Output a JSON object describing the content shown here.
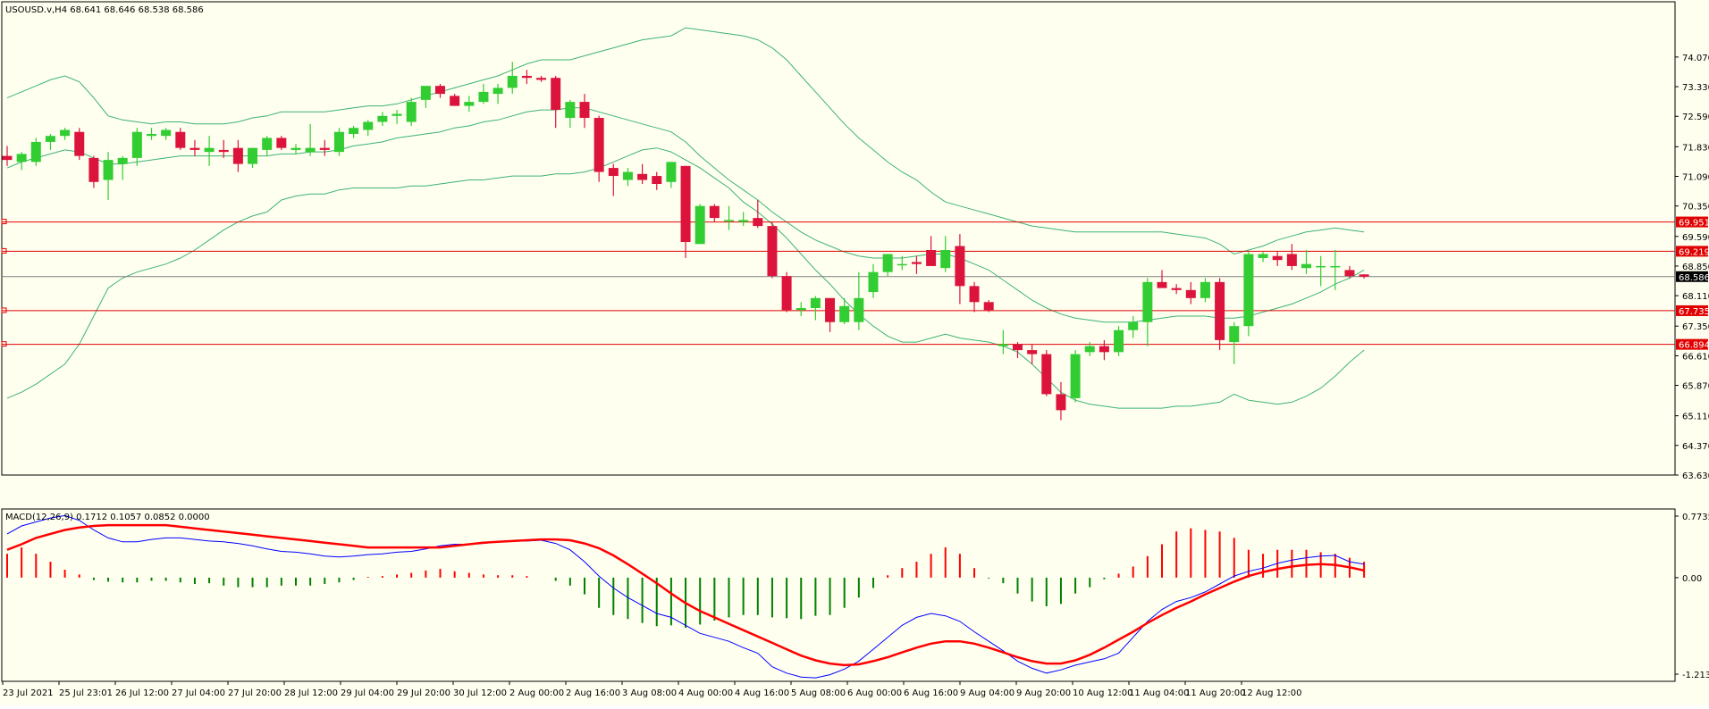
{
  "colors": {
    "background": "#FFFFF0",
    "frame": "#000000",
    "bull_candle": "#32CD32",
    "bear_candle": "#DC143C",
    "bollinger": "#3CB371",
    "hline": "#E00000",
    "bid_line": "#808080",
    "macd_main": "#0000FF",
    "macd_signal": "#FF0000",
    "hist_pos": "#FF0000",
    "hist_neg": "#008000",
    "label_red_bg": "#E00000",
    "label_price_bg": "#000000",
    "label_text": "#FFFFFF",
    "axis_text": "#000000"
  },
  "chart_data": {
    "price_panel": {
      "type": "candlestick",
      "title": "USOUSD.v,H4  68.641 68.646 68.538 68.586",
      "ylim": [
        63.63,
        75.45
      ],
      "y_ticks": [
        "74.070",
        "73.330",
        "72.590",
        "71.830",
        "71.090",
        "70.350",
        "69.590",
        "68.850",
        "68.110",
        "67.350",
        "66.610",
        "65.870",
        "65.110",
        "64.370",
        "63.630"
      ],
      "x_ticks": [
        "23 Jul 2021",
        "25 Jul 23:01",
        "26 Jul 12:00",
        "27 Jul 04:00",
        "27 Jul 20:00",
        "28 Jul 12:00",
        "29 Jul 04:00",
        "29 Jul 20:00",
        "30 Jul 12:00",
        "2 Aug 00:00",
        "2 Aug 16:00",
        "3 Aug 08:00",
        "4 Aug 00:00",
        "4 Aug 16:00",
        "5 Aug 08:00",
        "6 Aug 00:00",
        "6 Aug 16:00",
        "9 Aug 04:00",
        "9 Aug 20:00",
        "10 Aug 12:00",
        "11 Aug 04:00",
        "11 Aug 20:00",
        "12 Aug 12:00"
      ],
      "candles": [
        [
          71.6,
          71.85,
          71.35,
          71.5
        ],
        [
          71.45,
          71.7,
          71.25,
          71.65
        ],
        [
          71.45,
          72.05,
          71.35,
          71.95
        ],
        [
          71.95,
          72.15,
          71.75,
          72.1
        ],
        [
          72.1,
          72.3,
          72.0,
          72.25
        ],
        [
          72.2,
          72.3,
          71.5,
          71.6
        ],
        [
          71.55,
          71.6,
          70.8,
          70.95
        ],
        [
          71.0,
          71.7,
          70.5,
          71.5
        ],
        [
          71.4,
          71.6,
          71.0,
          71.55
        ],
        [
          71.55,
          72.3,
          71.35,
          72.2
        ],
        [
          72.1,
          72.3,
          72.0,
          72.15
        ],
        [
          72.1,
          72.3,
          72.0,
          72.25
        ],
        [
          72.2,
          72.3,
          71.75,
          71.8
        ],
        [
          71.8,
          72.0,
          71.6,
          71.75
        ],
        [
          71.7,
          72.1,
          71.35,
          71.8
        ],
        [
          71.75,
          72.0,
          71.55,
          71.7
        ],
        [
          71.8,
          72.0,
          71.2,
          71.4
        ],
        [
          71.4,
          71.8,
          71.3,
          71.8
        ],
        [
          71.75,
          72.1,
          71.6,
          72.05
        ],
        [
          72.05,
          72.1,
          71.75,
          71.8
        ],
        [
          71.75,
          71.9,
          71.65,
          71.8
        ],
        [
          71.7,
          72.4,
          71.6,
          71.8
        ],
        [
          71.8,
          72.0,
          71.6,
          71.75
        ],
        [
          71.7,
          72.3,
          71.6,
          72.2
        ],
        [
          72.15,
          72.35,
          72.05,
          72.3
        ],
        [
          72.25,
          72.5,
          72.1,
          72.45
        ],
        [
          72.45,
          72.7,
          72.35,
          72.6
        ],
        [
          72.6,
          72.75,
          72.4,
          72.65
        ],
        [
          72.45,
          73.05,
          72.35,
          72.95
        ],
        [
          73.0,
          73.3,
          72.8,
          73.35
        ],
        [
          73.35,
          73.4,
          73.05,
          73.15
        ],
        [
          73.1,
          73.15,
          72.85,
          72.85
        ],
        [
          72.85,
          73.1,
          72.7,
          72.95
        ],
        [
          72.95,
          73.4,
          72.9,
          73.2
        ],
        [
          73.15,
          73.4,
          72.9,
          73.3
        ],
        [
          73.3,
          73.95,
          73.15,
          73.6
        ],
        [
          73.6,
          73.75,
          73.4,
          73.55
        ],
        [
          73.55,
          73.6,
          73.45,
          73.5
        ],
        [
          73.55,
          73.6,
          72.3,
          72.75
        ],
        [
          72.55,
          73.0,
          72.3,
          72.95
        ],
        [
          72.95,
          73.15,
          72.3,
          72.55
        ],
        [
          72.55,
          72.6,
          70.95,
          71.2
        ],
        [
          71.3,
          71.4,
          70.6,
          71.1
        ],
        [
          71.0,
          71.3,
          70.85,
          71.2
        ],
        [
          71.15,
          71.4,
          70.9,
          71.0
        ],
        [
          71.1,
          71.2,
          70.75,
          70.9
        ],
        [
          70.95,
          71.45,
          70.8,
          71.45
        ],
        [
          71.35,
          71.35,
          69.05,
          69.45
        ],
        [
          69.4,
          70.4,
          69.4,
          70.35
        ],
        [
          70.35,
          70.4,
          69.95,
          70.05
        ],
        [
          70.0,
          70.35,
          69.75,
          70.0
        ],
        [
          69.95,
          70.2,
          69.85,
          70.0
        ],
        [
          70.05,
          70.5,
          69.8,
          69.85
        ],
        [
          69.85,
          69.95,
          68.55,
          68.6
        ],
        [
          68.6,
          68.7,
          67.7,
          67.75
        ],
        [
          67.75,
          67.95,
          67.6,
          67.8
        ],
        [
          67.8,
          68.1,
          67.5,
          68.05
        ],
        [
          68.05,
          68.05,
          67.2,
          67.45
        ],
        [
          67.45,
          68.05,
          67.4,
          67.85
        ],
        [
          67.45,
          68.7,
          67.25,
          68.05
        ],
        [
          68.2,
          68.9,
          68.05,
          68.7
        ],
        [
          68.7,
          69.1,
          68.6,
          69.15
        ],
        [
          68.9,
          69.1,
          68.75,
          68.9
        ],
        [
          68.95,
          69.1,
          68.65,
          68.9
        ],
        [
          69.25,
          69.6,
          68.85,
          68.85
        ],
        [
          68.8,
          69.6,
          68.7,
          69.25
        ],
        [
          69.35,
          69.65,
          67.9,
          68.35
        ],
        [
          68.35,
          68.45,
          67.7,
          67.95
        ],
        [
          67.95,
          68.0,
          67.7,
          67.75
        ],
        [
          66.85,
          67.25,
          66.65,
          66.9
        ],
        [
          66.9,
          66.95,
          66.55,
          66.75
        ],
        [
          66.75,
          66.9,
          66.4,
          66.65
        ],
        [
          66.65,
          66.75,
          65.6,
          65.65
        ],
        [
          65.65,
          65.95,
          65.0,
          65.25
        ],
        [
          65.55,
          66.75,
          65.45,
          66.65
        ],
        [
          66.7,
          66.95,
          66.6,
          66.85
        ],
        [
          66.85,
          67.0,
          66.5,
          66.7
        ],
        [
          66.7,
          67.35,
          66.6,
          67.25
        ],
        [
          67.25,
          67.6,
          67.05,
          67.45
        ],
        [
          67.45,
          68.55,
          66.85,
          68.45
        ],
        [
          68.45,
          68.75,
          68.35,
          68.3
        ],
        [
          68.3,
          68.4,
          68.15,
          68.25
        ],
        [
          68.25,
          68.45,
          67.9,
          68.05
        ],
        [
          68.05,
          68.55,
          67.95,
          68.45
        ],
        [
          68.45,
          68.55,
          66.75,
          67.0
        ],
        [
          66.95,
          67.45,
          66.4,
          67.35
        ],
        [
          67.35,
          69.2,
          67.1,
          69.15
        ],
        [
          69.05,
          69.2,
          68.95,
          69.15
        ],
        [
          69.1,
          69.2,
          68.85,
          69.0
        ],
        [
          69.15,
          69.4,
          68.75,
          68.85
        ],
        [
          68.8,
          69.25,
          68.65,
          68.9
        ],
        [
          68.85,
          69.1,
          68.35,
          68.85
        ],
        [
          68.85,
          69.25,
          68.25,
          68.85
        ],
        [
          68.75,
          68.85,
          68.55,
          68.6
        ],
        [
          68.641,
          68.646,
          68.538,
          68.586
        ]
      ],
      "bollinger_upper": [
        73.05,
        73.2,
        73.35,
        73.5,
        73.6,
        73.45,
        73.05,
        72.6,
        72.5,
        72.45,
        72.4,
        72.45,
        72.45,
        72.4,
        72.4,
        72.4,
        72.45,
        72.55,
        72.6,
        72.7,
        72.7,
        72.7,
        72.7,
        72.75,
        72.8,
        72.85,
        72.85,
        72.9,
        73.0,
        73.1,
        73.2,
        73.3,
        73.4,
        73.5,
        73.6,
        73.75,
        73.9,
        74.0,
        74.0,
        74.0,
        74.1,
        74.2,
        74.3,
        74.4,
        74.5,
        74.55,
        74.6,
        74.8,
        74.75,
        74.7,
        74.65,
        74.6,
        74.5,
        74.3,
        74.0,
        73.6,
        73.2,
        72.8,
        72.4,
        72.05,
        71.75,
        71.45,
        71.2,
        71.0,
        70.7,
        70.45,
        70.35,
        70.25,
        70.15,
        70.05,
        69.95,
        69.85,
        69.8,
        69.75,
        69.7,
        69.7,
        69.7,
        69.7,
        69.7,
        69.7,
        69.7,
        69.65,
        69.6,
        69.55,
        69.4,
        69.15,
        69.25,
        69.35,
        69.5,
        69.6,
        69.7,
        69.75,
        69.8,
        69.75,
        69.7
      ],
      "bollinger_mid": [
        71.3,
        71.45,
        71.55,
        71.65,
        71.75,
        71.7,
        71.55,
        71.4,
        71.4,
        71.45,
        71.5,
        71.55,
        71.6,
        71.6,
        71.6,
        71.6,
        71.6,
        71.6,
        71.6,
        71.65,
        71.65,
        71.7,
        71.7,
        71.75,
        71.85,
        71.9,
        71.95,
        72.05,
        72.1,
        72.15,
        72.2,
        72.3,
        72.35,
        72.45,
        72.5,
        72.6,
        72.7,
        72.75,
        72.75,
        72.8,
        72.8,
        72.7,
        72.6,
        72.5,
        72.4,
        72.3,
        72.2,
        71.95,
        71.6,
        71.3,
        71.0,
        70.75,
        70.5,
        70.2,
        69.95,
        69.7,
        69.5,
        69.35,
        69.2,
        69.1,
        69.05,
        69.05,
        69.05,
        69.1,
        69.15,
        69.15,
        69.05,
        68.9,
        68.75,
        68.5,
        68.25,
        68.0,
        67.8,
        67.65,
        67.55,
        67.5,
        67.45,
        67.45,
        67.45,
        67.5,
        67.55,
        67.6,
        67.6,
        67.6,
        67.55,
        67.55,
        67.6,
        67.7,
        67.8,
        67.9,
        68.05,
        68.2,
        68.4,
        68.55,
        68.75
      ],
      "bollinger_lower": [
        65.55,
        65.7,
        65.9,
        66.15,
        66.4,
        66.9,
        67.6,
        68.3,
        68.55,
        68.7,
        68.8,
        68.9,
        69.05,
        69.25,
        69.5,
        69.75,
        69.95,
        70.1,
        70.2,
        70.5,
        70.6,
        70.65,
        70.65,
        70.75,
        70.8,
        70.8,
        70.8,
        70.8,
        70.85,
        70.85,
        70.9,
        70.95,
        71.0,
        71.0,
        71.05,
        71.1,
        71.1,
        71.1,
        71.15,
        71.15,
        71.2,
        71.3,
        71.45,
        71.6,
        71.75,
        71.8,
        71.7,
        71.5,
        71.3,
        71.05,
        70.8,
        70.45,
        70.2,
        69.9,
        69.55,
        69.15,
        68.75,
        68.4,
        68.0,
        67.65,
        67.35,
        67.1,
        66.95,
        66.95,
        67.05,
        67.15,
        67.05,
        67.0,
        66.95,
        66.85,
        66.7,
        66.4,
        66.05,
        65.7,
        65.5,
        65.4,
        65.35,
        65.3,
        65.3,
        65.3,
        65.3,
        65.35,
        65.35,
        65.4,
        65.45,
        65.65,
        65.5,
        65.45,
        65.4,
        65.45,
        65.6,
        65.8,
        66.1,
        66.45,
        66.75
      ],
      "horizontal_lines": [
        {
          "price": 69.951,
          "label": "69.951"
        },
        {
          "price": 69.219,
          "label": "69.219"
        },
        {
          "price": 67.735,
          "label": "67.735"
        },
        {
          "price": 66.894,
          "label": "66.894"
        }
      ],
      "current_price": {
        "price": 68.586,
        "label": "68.586"
      }
    },
    "macd_panel": {
      "type": "histogram+line",
      "title": "MACD(12,26,9) 0.1712 0.1057 0.0852 0.0000",
      "ylim": [
        -1.2136,
        0.7735
      ],
      "y_ticks": [
        "0.7735",
        "0.00",
        "-1.2136"
      ],
      "histogram": [
        0.3,
        0.38,
        0.3,
        0.2,
        0.1,
        0.04,
        -0.03,
        -0.05,
        -0.06,
        -0.06,
        -0.04,
        -0.04,
        -0.06,
        -0.08,
        -0.07,
        -0.1,
        -0.12,
        -0.12,
        -0.12,
        -0.1,
        -0.1,
        -0.1,
        -0.08,
        -0.06,
        -0.03,
        0.01,
        0.02,
        0.04,
        0.06,
        0.09,
        0.11,
        0.08,
        0.06,
        0.04,
        0.03,
        0.03,
        0.02,
        0.0,
        -0.04,
        -0.1,
        -0.21,
        -0.38,
        -0.47,
        -0.52,
        -0.57,
        -0.61,
        -0.6,
        -0.63,
        -0.59,
        -0.54,
        -0.5,
        -0.47,
        -0.47,
        -0.5,
        -0.51,
        -0.52,
        -0.48,
        -0.47,
        -0.38,
        -0.25,
        -0.13,
        0.03,
        0.12,
        0.2,
        0.3,
        0.38,
        0.3,
        0.12,
        -0.01,
        -0.07,
        -0.2,
        -0.3,
        -0.36,
        -0.33,
        -0.2,
        -0.12,
        -0.02,
        0.05,
        0.14,
        0.27,
        0.42,
        0.58,
        0.62,
        0.6,
        0.58,
        0.5,
        0.35,
        0.3,
        0.35,
        0.35,
        0.35,
        0.32,
        0.3,
        0.25,
        0.2
      ],
      "macd_line": [
        0.55,
        0.65,
        0.7,
        0.75,
        0.78,
        0.72,
        0.6,
        0.5,
        0.45,
        0.45,
        0.48,
        0.5,
        0.5,
        0.48,
        0.46,
        0.45,
        0.43,
        0.4,
        0.36,
        0.33,
        0.32,
        0.3,
        0.27,
        0.26,
        0.27,
        0.29,
        0.3,
        0.32,
        0.33,
        0.36,
        0.4,
        0.42,
        0.42,
        0.43,
        0.45,
        0.46,
        0.46,
        0.47,
        0.43,
        0.35,
        0.2,
        0.02,
        -0.13,
        -0.25,
        -0.35,
        -0.45,
        -0.5,
        -0.6,
        -0.7,
        -0.75,
        -0.8,
        -0.88,
        -0.95,
        -1.12,
        -1.2,
        -1.25,
        -1.26,
        -1.22,
        -1.15,
        -1.05,
        -0.9,
        -0.75,
        -0.6,
        -0.5,
        -0.45,
        -0.48,
        -0.55,
        -0.68,
        -0.8,
        -0.92,
        -1.05,
        -1.14,
        -1.2,
        -1.16,
        -1.1,
        -1.06,
        -1.02,
        -0.95,
        -0.75,
        -0.55,
        -0.4,
        -0.3,
        -0.25,
        -0.18,
        -0.08,
        0.02,
        0.08,
        0.12,
        0.18,
        0.22,
        0.25,
        0.27,
        0.28,
        0.2,
        0.17
      ],
      "signal_line": [
        0.35,
        0.42,
        0.5,
        0.55,
        0.6,
        0.63,
        0.65,
        0.66,
        0.66,
        0.66,
        0.66,
        0.66,
        0.64,
        0.62,
        0.6,
        0.58,
        0.56,
        0.54,
        0.52,
        0.5,
        0.48,
        0.46,
        0.44,
        0.42,
        0.4,
        0.38,
        0.38,
        0.38,
        0.38,
        0.38,
        0.38,
        0.4,
        0.42,
        0.44,
        0.45,
        0.46,
        0.47,
        0.48,
        0.48,
        0.47,
        0.43,
        0.37,
        0.28,
        0.17,
        0.05,
        -0.07,
        -0.2,
        -0.32,
        -0.42,
        -0.5,
        -0.58,
        -0.66,
        -0.74,
        -0.82,
        -0.9,
        -0.98,
        -1.04,
        -1.08,
        -1.1,
        -1.09,
        -1.05,
        -1.0,
        -0.94,
        -0.88,
        -0.83,
        -0.8,
        -0.8,
        -0.83,
        -0.88,
        -0.94,
        -1.0,
        -1.05,
        -1.08,
        -1.08,
        -1.04,
        -0.97,
        -0.88,
        -0.78,
        -0.68,
        -0.57,
        -0.47,
        -0.38,
        -0.3,
        -0.21,
        -0.13,
        -0.05,
        0.02,
        0.07,
        0.11,
        0.14,
        0.16,
        0.17,
        0.16,
        0.13,
        0.09
      ]
    }
  }
}
